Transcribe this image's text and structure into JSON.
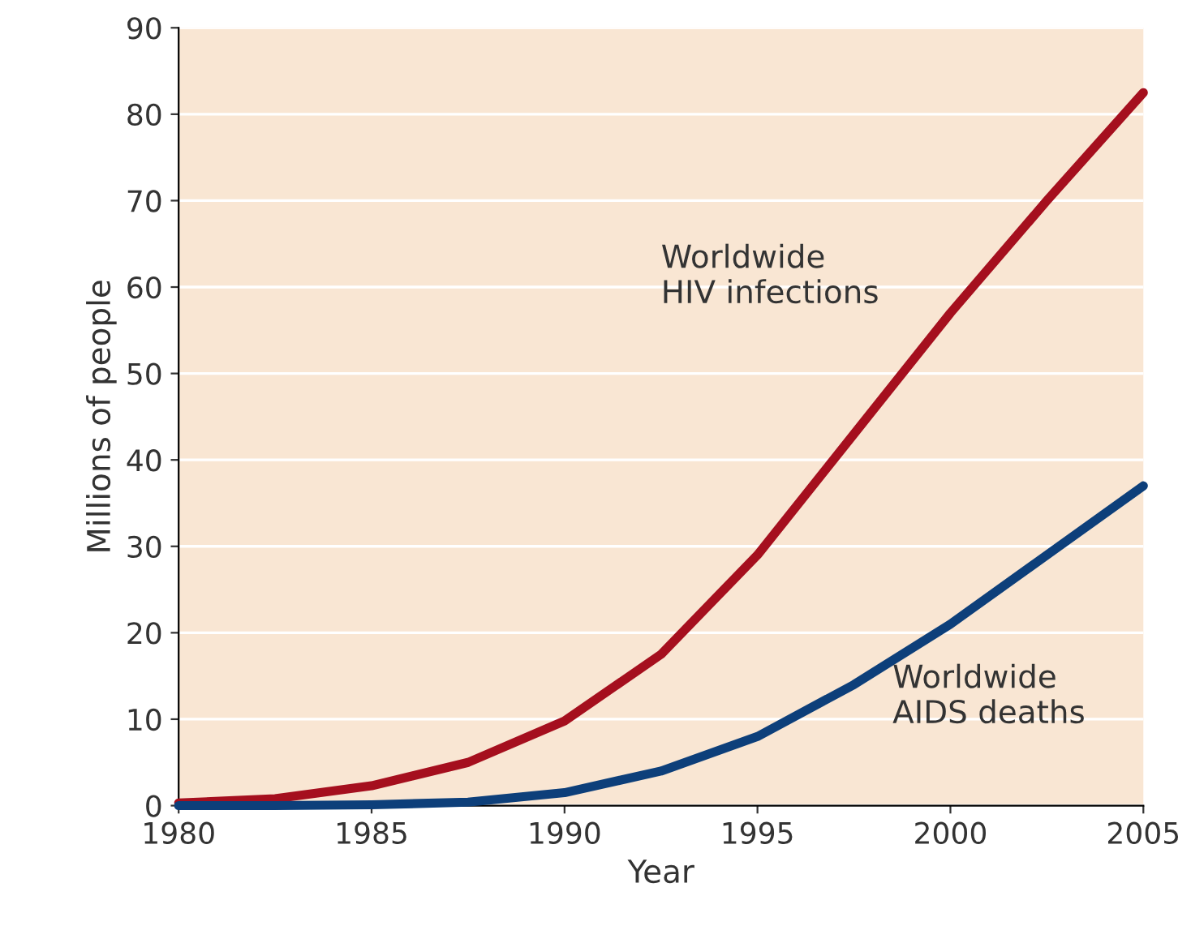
{
  "chart_data": {
    "type": "line",
    "xlabel": "Year",
    "ylabel": "Millions of people",
    "x": [
      1980,
      1982.5,
      1985,
      1987.5,
      1990,
      1992.5,
      1995,
      1997.5,
      2000,
      2002.5,
      2005
    ],
    "series": [
      {
        "color": "#a50f1e",
        "values": [
          0.3,
          0.8,
          2.3,
          5,
          9.8,
          17.5,
          29,
          43,
          57,
          70,
          82.5
        ]
      },
      {
        "color": "#0d3f7a",
        "values": [
          0,
          0,
          0.1,
          0.4,
          1.5,
          4,
          8,
          14,
          21,
          29,
          37
        ]
      }
    ],
    "annotations": [
      "Worldwide\nHIV infections",
      "Worldwide\nAIDS deaths"
    ],
    "xlim": [
      1980,
      2005
    ],
    "xticks": [
      1980,
      1985,
      1990,
      1995,
      2000,
      2005
    ],
    "ylim": [
      0,
      90
    ],
    "yticks": [
      0,
      10,
      20,
      30,
      40,
      50,
      60,
      70,
      80,
      90
    ],
    "grid": "y",
    "legend": false,
    "marker": "none",
    "line_style": "solid"
  }
}
